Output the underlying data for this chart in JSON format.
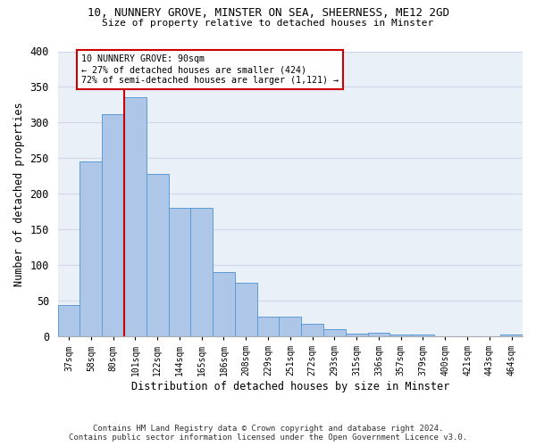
{
  "title_line1": "10, NUNNERY GROVE, MINSTER ON SEA, SHEERNESS, ME12 2GD",
  "title_line2": "Size of property relative to detached houses in Minster",
  "xlabel": "Distribution of detached houses by size in Minster",
  "ylabel": "Number of detached properties",
  "categories": [
    "37sqm",
    "58sqm",
    "80sqm",
    "101sqm",
    "122sqm",
    "144sqm",
    "165sqm",
    "186sqm",
    "208sqm",
    "229sqm",
    "251sqm",
    "272sqm",
    "293sqm",
    "315sqm",
    "336sqm",
    "357sqm",
    "379sqm",
    "400sqm",
    "421sqm",
    "443sqm",
    "464sqm"
  ],
  "values": [
    44,
    245,
    312,
    335,
    228,
    180,
    180,
    90,
    75,
    28,
    28,
    18,
    10,
    4,
    5,
    3,
    3,
    0,
    0,
    0,
    3
  ],
  "bar_color": "#aec6e8",
  "bar_edge_color": "#5b9bd5",
  "annotation_line1": "10 NUNNERY GROVE: 90sqm",
  "annotation_line2": "← 27% of detached houses are smaller (424)",
  "annotation_line3": "72% of semi-detached houses are larger (1,121) →",
  "vline_color": "#cc0000",
  "annotation_box_edge": "#cc0000",
  "footer_line1": "Contains HM Land Registry data © Crown copyright and database right 2024.",
  "footer_line2": "Contains public sector information licensed under the Open Government Licence v3.0.",
  "ylim": [
    0,
    400
  ],
  "yticks": [
    0,
    50,
    100,
    150,
    200,
    250,
    300,
    350,
    400
  ],
  "grid_color": "#d0d8e8",
  "bg_color": "#eaf0f8",
  "vline_x": 2.5
}
